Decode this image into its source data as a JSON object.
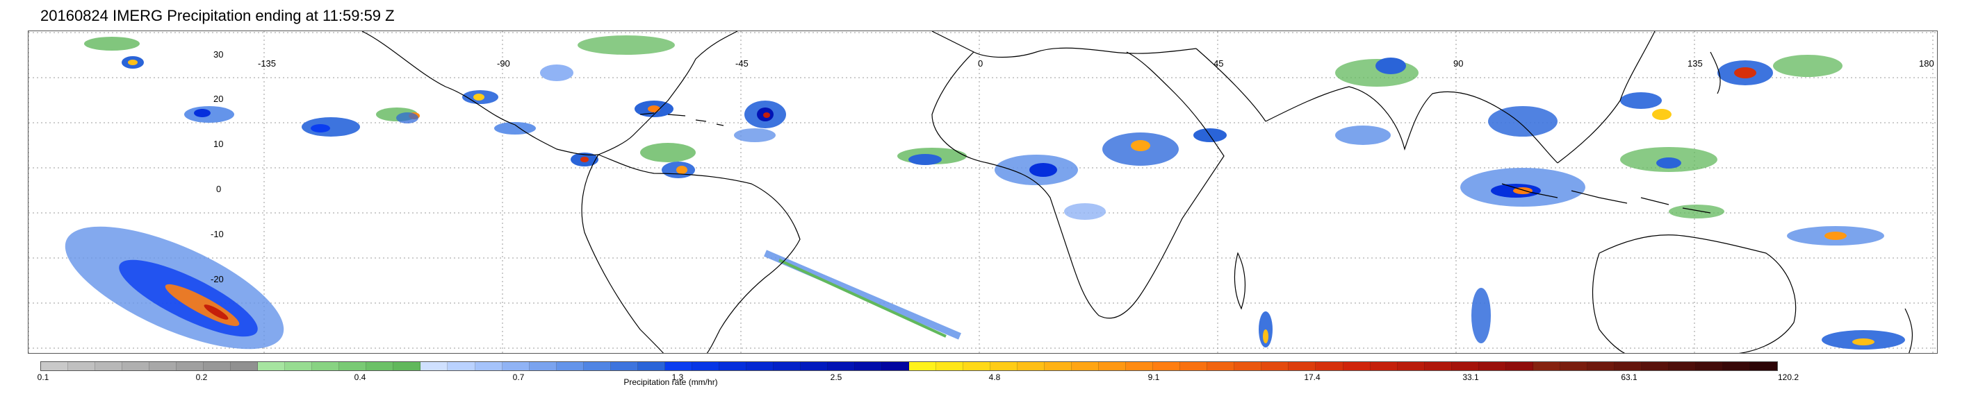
{
  "title": "20160824 IMERG Precipitation ending at 11:59:59 Z",
  "map": {
    "lat_labels": [
      "30",
      "20",
      "10",
      "0",
      "-10",
      "-20"
    ],
    "lon_labels": [
      "-135",
      "-90",
      "-45",
      "0",
      "45",
      "90",
      "135",
      "180"
    ],
    "gridlines": "dotted",
    "coastline_color": "#000000"
  },
  "colorbar": {
    "label": "Precipitation rate (mm/hr)",
    "tick_labels": [
      "0.1",
      "0.2",
      "0.4",
      "0.7",
      "1.3",
      "2.5",
      "4.8",
      "9.1",
      "17.4",
      "33.1",
      "63.1",
      "120.2"
    ],
    "colors": [
      "#c9c9c9",
      "#c0c0c0",
      "#b8b8b8",
      "#b0b0b0",
      "#a8a8a8",
      "#a0a0a0",
      "#989898",
      "#909090",
      "#a6e5a0",
      "#97dc91",
      "#88d382",
      "#79ca74",
      "#6cc167",
      "#61b85c",
      "#cfe0ff",
      "#bad2ff",
      "#a5c3fb",
      "#90b3f5",
      "#7aa3ef",
      "#6494ea",
      "#5085e4",
      "#3d74de",
      "#2a64d8",
      "#0a3df0",
      "#0736e6",
      "#052fdc",
      "#0428d2",
      "#0321c8",
      "#021abe",
      "#0213b4",
      "#010caa",
      "#0105a0",
      "#fff21a",
      "#ffe619",
      "#ffd918",
      "#ffcc17",
      "#ffbf16",
      "#ffb215",
      "#ffa514",
      "#ff9813",
      "#ff8b12",
      "#ff7e11",
      "#f97110",
      "#f2640f",
      "#eb570e",
      "#e44a0d",
      "#dd3d0c",
      "#d6300b",
      "#d0240a",
      "#c51f0a",
      "#ba1b0a",
      "#b0170a",
      "#a5130a",
      "#9a0f0a",
      "#8f0c0a",
      "#86220f",
      "#7a1d0e",
      "#6f190d",
      "#64150c",
      "#59110b",
      "#4e0e0a",
      "#430b09",
      "#380808",
      "#2d0507"
    ]
  }
}
